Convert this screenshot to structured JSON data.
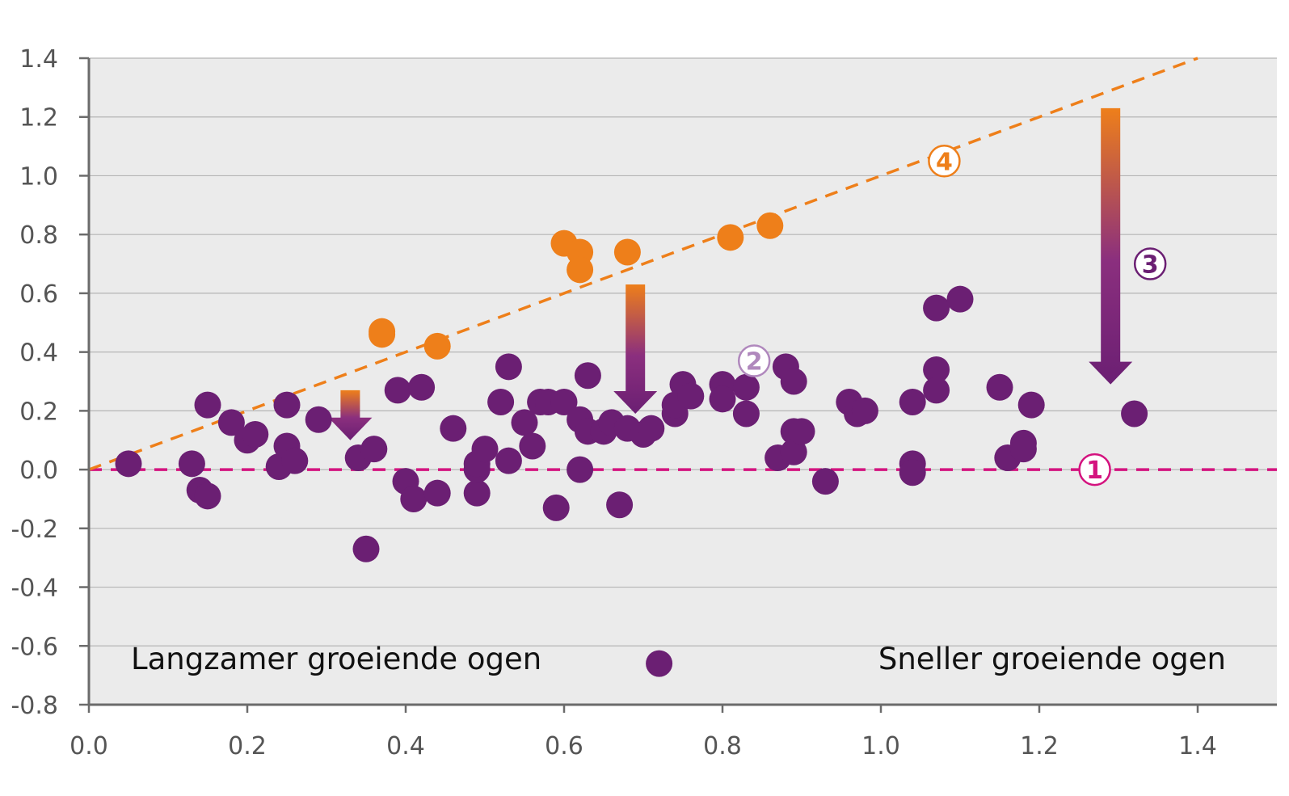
{
  "chart_data": {
    "type": "scatter",
    "title": "",
    "xlabel": "",
    "ylabel": "",
    "xlim": [
      0.0,
      1.5
    ],
    "ylim": [
      -0.8,
      1.4
    ],
    "x_ticks": [
      "0.0",
      "0.2",
      "0.4",
      "0.6",
      "0.8",
      "1.0",
      "1.2",
      "1.4"
    ],
    "y_ticks": [
      "1.4",
      "1.2",
      "1.0",
      "0.8",
      "0.6",
      "0.4",
      "0.2",
      "0.0",
      "-0.2",
      "-0.4",
      "-0.6",
      "-0.8"
    ],
    "grid": true,
    "annotations": {
      "left_label": "Langzamer groeiende ogen",
      "right_label": "Sneller groeiende ogen"
    },
    "colors": {
      "plot_background": "#ebebeb",
      "grid": "#b5b5b5",
      "axis": "#6b6b6b",
      "purple": "#6b1f73",
      "orange": "#ee7f1a",
      "magenta": "#d4137f",
      "light_purple": "#b088bd"
    },
    "reference_lines": [
      {
        "name": "no-effect",
        "x": [
          0.0,
          1.5
        ],
        "y": [
          0.0,
          0.0
        ],
        "color": "#d4137f",
        "style": "dashed",
        "marker": "1"
      },
      {
        "name": "identity",
        "x": [
          0.0,
          1.4
        ],
        "y": [
          0.0,
          1.4
        ],
        "color": "#ee7f1a",
        "style": "dashed",
        "marker": "4"
      }
    ],
    "arrows": [
      {
        "x": 0.33,
        "y_from": 0.27,
        "y_to": 0.1
      },
      {
        "x": 0.69,
        "y_from": 0.63,
        "y_to": 0.19
      },
      {
        "x": 1.29,
        "y_from": 1.23,
        "y_to": 0.29
      }
    ],
    "markers": [
      {
        "label": "1",
        "x": 1.27,
        "y": 0.0,
        "color": "#d4137f"
      },
      {
        "label": "2",
        "x": 0.84,
        "y": 0.37,
        "color": "#b088bd"
      },
      {
        "label": "3",
        "x": 1.34,
        "y": 0.7,
        "color": "#6b1f73"
      },
      {
        "label": "4",
        "x": 1.08,
        "y": 1.05,
        "color": "#ee7f1a"
      }
    ],
    "series": [
      {
        "name": "orange",
        "color": "#ee7f1a",
        "points": [
          [
            0.37,
            0.47
          ],
          [
            0.37,
            0.46
          ],
          [
            0.44,
            0.42
          ],
          [
            0.6,
            0.77
          ],
          [
            0.62,
            0.74
          ],
          [
            0.62,
            0.68
          ],
          [
            0.68,
            0.74
          ],
          [
            0.81,
            0.79
          ],
          [
            0.86,
            0.83
          ]
        ]
      },
      {
        "name": "purple",
        "color": "#6b1f73",
        "points": [
          [
            0.05,
            0.02
          ],
          [
            0.13,
            0.02
          ],
          [
            0.14,
            -0.07
          ],
          [
            0.15,
            -0.09
          ],
          [
            0.15,
            0.22
          ],
          [
            0.18,
            0.16
          ],
          [
            0.2,
            0.1
          ],
          [
            0.21,
            0.12
          ],
          [
            0.24,
            0.01
          ],
          [
            0.25,
            0.22
          ],
          [
            0.25,
            0.08
          ],
          [
            0.26,
            0.03
          ],
          [
            0.29,
            0.17
          ],
          [
            0.34,
            0.04
          ],
          [
            0.35,
            -0.27
          ],
          [
            0.36,
            0.07
          ],
          [
            0.39,
            0.27
          ],
          [
            0.4,
            -0.04
          ],
          [
            0.41,
            -0.1
          ],
          [
            0.42,
            0.28
          ],
          [
            0.44,
            -0.08
          ],
          [
            0.46,
            0.14
          ],
          [
            0.49,
            -0.08
          ],
          [
            0.49,
            0.0
          ],
          [
            0.49,
            0.02
          ],
          [
            0.5,
            0.07
          ],
          [
            0.52,
            0.23
          ],
          [
            0.53,
            0.35
          ],
          [
            0.53,
            0.03
          ],
          [
            0.55,
            0.16
          ],
          [
            0.56,
            0.08
          ],
          [
            0.57,
            0.23
          ],
          [
            0.58,
            0.23
          ],
          [
            0.59,
            -0.13
          ],
          [
            0.6,
            0.23
          ],
          [
            0.62,
            0.0
          ],
          [
            0.62,
            0.17
          ],
          [
            0.63,
            0.32
          ],
          [
            0.63,
            0.13
          ],
          [
            0.65,
            0.13
          ],
          [
            0.66,
            0.16
          ],
          [
            0.67,
            -0.12
          ],
          [
            0.68,
            0.14
          ],
          [
            0.7,
            0.12
          ],
          [
            0.71,
            0.14
          ],
          [
            0.72,
            -0.66
          ],
          [
            0.74,
            0.19
          ],
          [
            0.74,
            0.22
          ],
          [
            0.75,
            0.29
          ],
          [
            0.76,
            0.25
          ],
          [
            0.8,
            0.29
          ],
          [
            0.8,
            0.24
          ],
          [
            0.83,
            0.28
          ],
          [
            0.83,
            0.19
          ],
          [
            0.87,
            0.04
          ],
          [
            0.88,
            0.35
          ],
          [
            0.89,
            0.3
          ],
          [
            0.89,
            0.13
          ],
          [
            0.89,
            0.06
          ],
          [
            0.9,
            0.13
          ],
          [
            0.93,
            -0.04
          ],
          [
            0.96,
            0.23
          ],
          [
            0.97,
            0.19
          ],
          [
            0.98,
            0.2
          ],
          [
            1.04,
            0.23
          ],
          [
            1.04,
            0.02
          ],
          [
            1.04,
            -0.01
          ],
          [
            1.07,
            0.55
          ],
          [
            1.07,
            0.34
          ],
          [
            1.07,
            0.27
          ],
          [
            1.1,
            0.58
          ],
          [
            1.15,
            0.28
          ],
          [
            1.16,
            0.04
          ],
          [
            1.18,
            0.09
          ],
          [
            1.18,
            0.07
          ],
          [
            1.19,
            0.22
          ],
          [
            1.32,
            0.19
          ]
        ]
      }
    ]
  }
}
